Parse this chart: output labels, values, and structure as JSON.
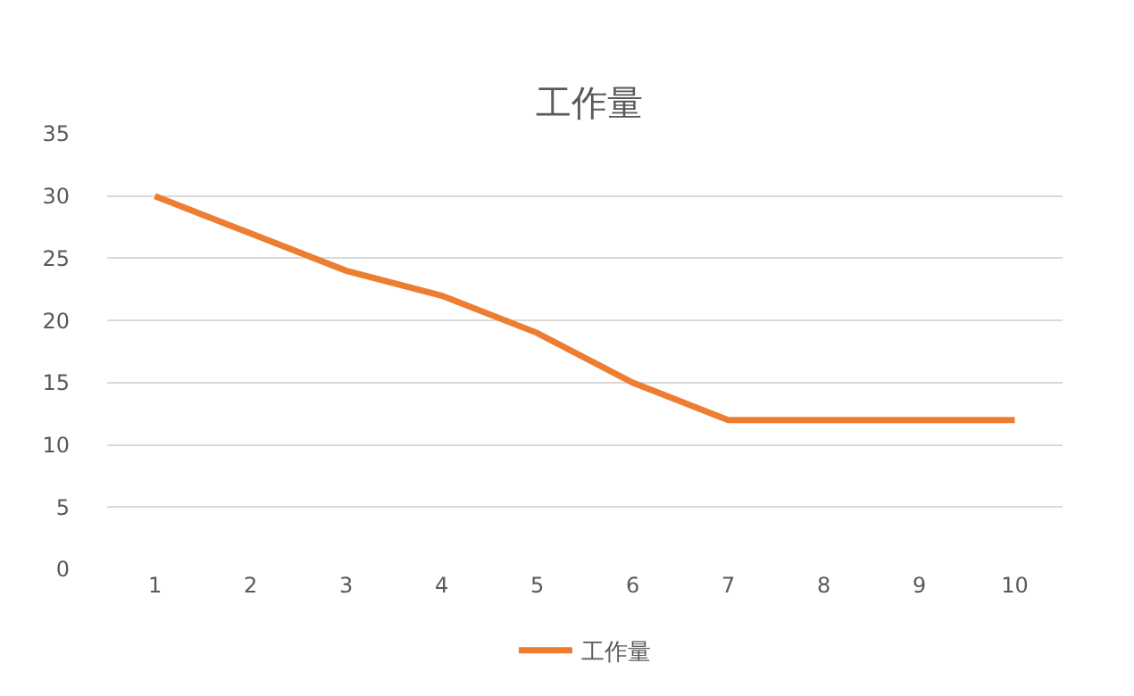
{
  "chart_data": {
    "type": "line",
    "title": "工作量",
    "categories": [
      "1",
      "2",
      "3",
      "4",
      "5",
      "6",
      "7",
      "8",
      "9",
      "10"
    ],
    "series": [
      {
        "name": "工作量",
        "color": "#ed7d31",
        "values": [
          30,
          27,
          24,
          22,
          19,
          15,
          12,
          12,
          12,
          12
        ]
      }
    ],
    "ylim": [
      0,
      35
    ],
    "yticks": [
      0,
      5,
      10,
      15,
      20,
      25,
      30,
      35
    ],
    "grid": "y",
    "legend": "bottom",
    "marker": "none",
    "line_style": "solid"
  }
}
